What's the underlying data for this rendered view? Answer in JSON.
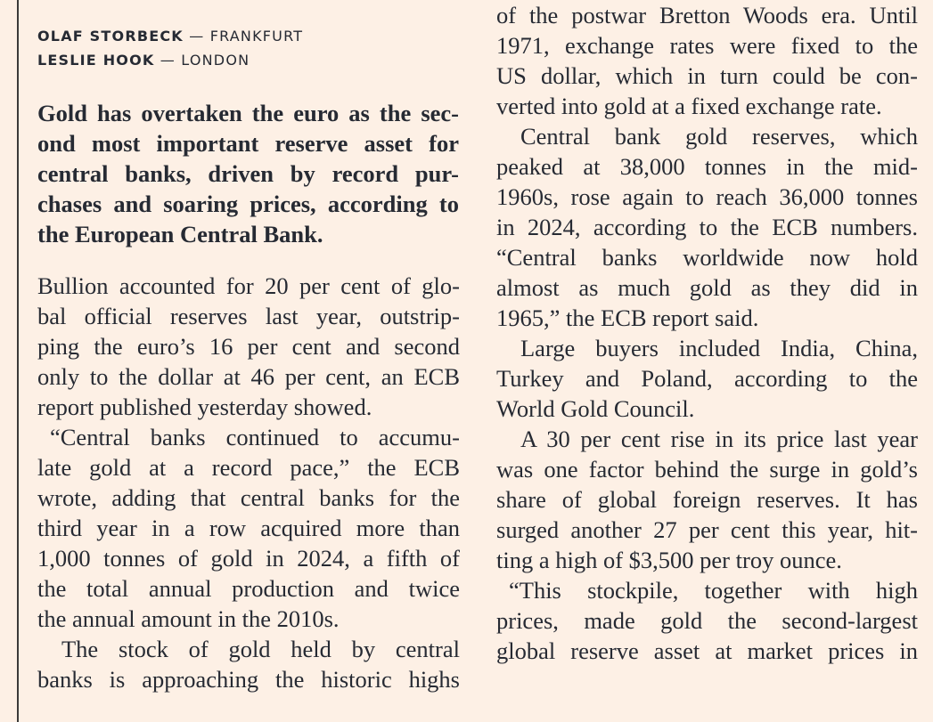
{
  "bylines": [
    {
      "name": "OLAF STORBECK",
      "location": "FRANKFURT"
    },
    {
      "name": "LESLIE HOOK",
      "location": "LONDON"
    }
  ],
  "separator": "—",
  "lead": [
    "Gold has overtaken the euro as the sec-",
    "ond most important reserve asset for",
    "central banks, driven by record pur-",
    "chases and soaring prices, according to",
    "the European Central Bank."
  ],
  "left_column": [
    {
      "lines": [
        "Bullion accounted for 20 per cent of glo-",
        "bal official reserves last year, outstrip-",
        "ping the euro’s 16 per cent and second",
        "only to the dollar at 46 per cent, an ECB",
        "report published yesterday showed."
      ]
    },
    {
      "lines": [
        "“Central banks continued to accumu-",
        "late gold at a record pace,” the ECB",
        "wrote, adding that central banks for the",
        "third year in a row acquired more than",
        "1,000 tonnes of gold in 2024, a fifth of",
        "the total annual production and twice",
        "the annual amount in the 2010s."
      ]
    },
    {
      "lines": [
        "The stock of gold held by central",
        "banks is approaching the historic highs"
      ]
    }
  ],
  "right_column": [
    {
      "lines": [
        "of the postwar Bretton Woods era. Until",
        "1971, exchange rates were fixed to the",
        "US dollar, which in turn could be con-",
        "verted into gold at a fixed exchange rate."
      ]
    },
    {
      "lines": [
        "Central bank gold reserves, which",
        "peaked at 38,000 tonnes in the mid-",
        "1960s, rose again to reach 36,000 tonnes",
        "in 2024, according to the ECB numbers.",
        "“Central banks worldwide now hold",
        "almost as much gold as they did in",
        "1965,” the ECB report said."
      ]
    },
    {
      "lines": [
        "Large buyers included India, China,",
        "Turkey and Poland, according to the",
        "World Gold Council."
      ]
    },
    {
      "lines": [
        "A 30 per cent rise in its price last year",
        "was one factor behind the surge in gold’s",
        "share of global foreign reserves. It has",
        "surged another 27 per cent this year, hit-",
        "ting a high of $3,500 per troy ounce."
      ]
    },
    {
      "lines": [
        "“This stockpile, together with high",
        "prices, made gold the second-largest",
        "global reserve asset at market prices in"
      ]
    }
  ]
}
